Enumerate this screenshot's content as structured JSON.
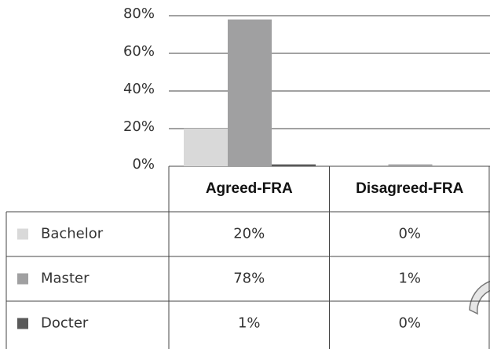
{
  "chart_data": {
    "type": "bar",
    "categories": [
      "Agreed-FRA",
      "Disagreed-FRA"
    ],
    "series": [
      {
        "name": "Bachelor",
        "color": "#d9d9d9",
        "values": [
          20,
          0
        ],
        "value_labels": [
          "20%",
          "0%"
        ]
      },
      {
        "name": "Master",
        "color": "#a0a0a1",
        "values": [
          78,
          1
        ],
        "value_labels": [
          "78%",
          "1%"
        ]
      },
      {
        "name": "Docter",
        "color": "#595959",
        "values": [
          1,
          0
        ],
        "value_labels": [
          "1%",
          "0%"
        ]
      }
    ],
    "ylim": [
      0,
      80
    ],
    "yticks": [
      {
        "value": 0,
        "label": "0%"
      },
      {
        "value": 20,
        "label": "20%"
      },
      {
        "value": 40,
        "label": "40%"
      },
      {
        "value": 60,
        "label": "60%"
      },
      {
        "value": 80,
        "label": "80%"
      }
    ],
    "grid": true
  }
}
